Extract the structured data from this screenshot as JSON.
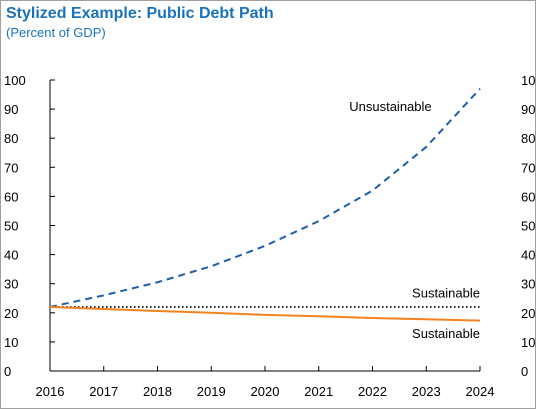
{
  "chart_data": {
    "type": "line",
    "title": "Stylized Example: Public Debt Path",
    "subtitle": "(Percent of GDP)",
    "xlabel": "",
    "ylabel": "",
    "x": [
      2016,
      2017,
      2018,
      2019,
      2020,
      2021,
      2022,
      2023,
      2024
    ],
    "xlim": [
      2016,
      2024
    ],
    "ylim": [
      0,
      100
    ],
    "yticks": [
      0,
      10,
      20,
      30,
      40,
      50,
      60,
      70,
      80,
      90,
      100
    ],
    "right_axis_ticks": [
      0,
      10,
      20,
      30,
      40,
      50,
      60,
      70,
      80,
      90,
      100
    ],
    "grid": false,
    "legend": "none",
    "series": [
      {
        "key": "unsustainable",
        "values": [
          22,
          26,
          30.5,
          36,
          43,
          51.5,
          62,
          77,
          97
        ],
        "color": "#1f5fa8",
        "style": "dashed"
      },
      {
        "key": "sustainable_flat",
        "values": [
          22,
          22,
          22,
          22,
          22,
          22,
          22,
          22,
          22
        ],
        "color": "#000000",
        "style": "dotted"
      },
      {
        "key": "sustainable_declining",
        "values": [
          22,
          21.3,
          20.6,
          20,
          19.3,
          18.8,
          18.2,
          17.8,
          17.3
        ],
        "color": "#f58220",
        "style": "solid"
      }
    ],
    "annotations": [
      {
        "text": "Unsustainable",
        "x": 2023.1,
        "y": 91
      },
      {
        "text": "Sustainable",
        "x": 2024.0,
        "y": 27
      },
      {
        "text": "Sustainable",
        "x": 2024.0,
        "y": 13
      }
    ]
  }
}
